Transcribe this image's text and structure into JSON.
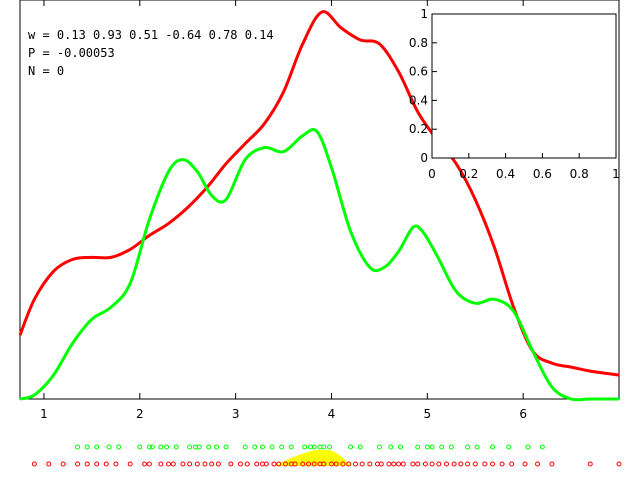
{
  "header": {
    "w_line": "w = 0.13 0.93 0.51 -0.64 0.78 0.14",
    "p_line": "P = -0.00053",
    "n_line": "N = 0"
  },
  "colors": {
    "red": "#ff0000",
    "green": "#00ff00",
    "yellow": "#ffff00",
    "frame": "#000000"
  },
  "chart_data": [
    {
      "type": "line",
      "title": "",
      "xlabel": "",
      "ylabel": "",
      "xlim": [
        0.75,
        7.0
      ],
      "ylim": [
        0,
        1
      ],
      "x_ticks": [
        "1",
        "2",
        "3",
        "4",
        "5",
        "6"
      ],
      "series": [
        {
          "color": "#ff0000",
          "x": [
            0.75,
            0.9,
            1.1,
            1.3,
            1.5,
            1.7,
            1.9,
            2.1,
            2.3,
            2.5,
            2.7,
            2.9,
            3.1,
            3.3,
            3.5,
            3.7,
            3.9,
            4.1,
            4.3,
            4.5,
            4.7,
            4.9,
            5.1,
            5.3,
            5.5,
            5.7,
            5.9,
            6.1,
            6.3,
            6.5,
            6.7,
            7.0
          ],
          "y": [
            0.16,
            0.25,
            0.32,
            0.35,
            0.355,
            0.355,
            0.375,
            0.41,
            0.44,
            0.48,
            0.53,
            0.59,
            0.64,
            0.69,
            0.77,
            0.89,
            0.97,
            0.93,
            0.9,
            0.89,
            0.82,
            0.72,
            0.65,
            0.59,
            0.5,
            0.38,
            0.23,
            0.12,
            0.09,
            0.08,
            0.07,
            0.06
          ]
        },
        {
          "color": "#00ff00",
          "x": [
            0.75,
            0.9,
            1.1,
            1.3,
            1.5,
            1.7,
            1.9,
            2.1,
            2.3,
            2.45,
            2.6,
            2.75,
            2.9,
            3.1,
            3.3,
            3.5,
            3.7,
            3.85,
            4.0,
            4.2,
            4.4,
            4.55,
            4.7,
            4.85,
            4.95,
            5.1,
            5.3,
            5.5,
            5.7,
            5.9,
            6.1,
            6.3,
            6.5,
            6.7,
            7.0
          ],
          "y": [
            0.0,
            0.01,
            0.06,
            0.14,
            0.2,
            0.23,
            0.29,
            0.45,
            0.57,
            0.6,
            0.57,
            0.51,
            0.5,
            0.6,
            0.63,
            0.62,
            0.66,
            0.67,
            0.58,
            0.42,
            0.33,
            0.33,
            0.37,
            0.43,
            0.42,
            0.36,
            0.27,
            0.24,
            0.25,
            0.22,
            0.12,
            0.03,
            0.0,
            0.0,
            0.0
          ]
        }
      ],
      "shaded_area": {
        "color": "#ffff00",
        "x": [
          3.4,
          3.6,
          3.8,
          3.9,
          4.0,
          4.1,
          4.2
        ],
        "height_fraction": [
          0.0,
          0.55,
          0.95,
          1.0,
          0.95,
          0.6,
          0.0
        ]
      },
      "rug": {
        "green_x": [
          1.35,
          1.45,
          1.55,
          1.68,
          1.78,
          2.0,
          2.1,
          2.13,
          2.22,
          2.28,
          2.38,
          2.52,
          2.58,
          2.62,
          2.72,
          2.8,
          2.9,
          3.1,
          3.2,
          3.28,
          3.38,
          3.48,
          3.58,
          3.72,
          3.78,
          3.82,
          3.88,
          3.92,
          3.98,
          4.2,
          4.3,
          4.5,
          4.62,
          4.72,
          4.9,
          5.0,
          5.05,
          5.15,
          5.25,
          5.42,
          5.52,
          5.68,
          5.85,
          6.05,
          6.2
        ],
        "red_x": [
          0.9,
          1.05,
          1.2,
          1.35,
          1.45,
          1.55,
          1.65,
          1.75,
          1.9,
          2.05,
          2.1,
          2.22,
          2.3,
          2.35,
          2.45,
          2.52,
          2.6,
          2.68,
          2.75,
          2.82,
          2.95,
          3.05,
          3.12,
          3.22,
          3.28,
          3.32,
          3.4,
          3.45,
          3.52,
          3.58,
          3.62,
          3.7,
          3.76,
          3.82,
          3.88,
          3.92,
          4.0,
          4.05,
          4.12,
          4.18,
          4.25,
          4.32,
          4.4,
          4.48,
          4.52,
          4.6,
          4.65,
          4.7,
          4.75,
          4.85,
          4.9,
          4.98,
          5.05,
          5.12,
          5.2,
          5.28,
          5.35,
          5.42,
          5.5,
          5.6,
          5.68,
          5.78,
          5.88,
          6.02,
          6.15,
          6.3,
          6.7,
          7.0
        ]
      }
    },
    {
      "type": "line",
      "title": "",
      "xlabel": "",
      "ylabel": "",
      "xlim": [
        0,
        1
      ],
      "ylim": [
        0,
        1
      ],
      "x_ticks": [
        "0",
        "0.2",
        "0.4",
        "0.6",
        "0.8",
        "1"
      ],
      "y_ticks": [
        "0",
        "0.2",
        "0.4",
        "0.6",
        "0.8",
        "1"
      ],
      "series": []
    }
  ]
}
